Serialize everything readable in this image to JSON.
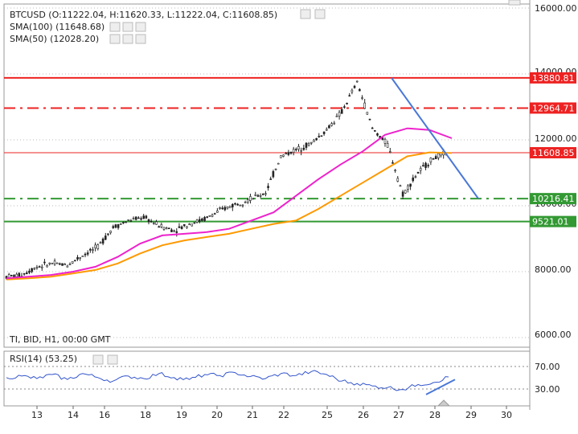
{
  "header": {
    "ohlc": "BTCUSD (O:11222.04, H:11620.33, L:11222.04, C:11608.85)",
    "sma100": "SMA(100) (11648.68)",
    "sma50": "SMA(50) (12028.20)",
    "footer_info": "TI, BID, H1, 00:00 GMT",
    "rsi_label": "RSI(14) (53.25)"
  },
  "colors": {
    "candle": "#222222",
    "sma100": "#ff9900",
    "sma50": "#ee22cc",
    "resistance": "#ee2222",
    "support": "#339933",
    "trendline": "#4a78d8",
    "rsi": "#3355cc"
  },
  "chart_data": [
    {
      "type": "line",
      "title": "BTCUSD",
      "timeframe": "H1",
      "yaxis_ticks": [
        "6000.00",
        "8000.00",
        "10000.00",
        "12000.00",
        "16000.00"
      ],
      "x_ticks": [
        "13",
        "14",
        "16",
        "18",
        "19",
        "20",
        "21",
        "22",
        "25",
        "26",
        "27",
        "28",
        "29",
        "30"
      ],
      "series": [
        {
          "name": "SMA(100)",
          "y": [
            7760,
            7800,
            7850,
            7950,
            8050,
            8250,
            8550,
            8800,
            8950,
            9050,
            9150,
            9300,
            9450,
            9550,
            9900,
            10300,
            10700,
            11100,
            11500,
            11620,
            11600
          ]
        },
        {
          "name": "SMA(50)",
          "y": [
            7800,
            7850,
            7900,
            8000,
            8150,
            8450,
            8850,
            9100,
            9150,
            9200,
            9300,
            9550,
            9800,
            10300,
            10800,
            11250,
            11650,
            12150,
            12350,
            12300,
            12050
          ]
        }
      ],
      "price_series": [
        7850,
        7900,
        8150,
        8250,
        8200,
        8500,
        8750,
        9350,
        9550,
        9650,
        9400,
        9250,
        9450,
        9600,
        9850,
        10050,
        10200,
        10400,
        11500,
        11700,
        11900,
        12300,
        12850,
        13750,
        12350,
        11850,
        10350,
        11000,
        11450,
        11608.85
      ],
      "levels": [
        {
          "value": 13880.81,
          "label": "13880.81",
          "style": "solid",
          "color": "#ee2222"
        },
        {
          "value": 12964.71,
          "label": "12964.71",
          "style": "dashdot",
          "color": "#ee2222"
        },
        {
          "value": 11608.85,
          "label": "11608.85",
          "style": "thin",
          "color": "#ee2222"
        },
        {
          "value": 10216.41,
          "label": "10216.41",
          "style": "dashdot",
          "color": "#339933"
        },
        {
          "value": 9521.01,
          "label": "9521.01",
          "style": "solid",
          "color": "#339933"
        }
      ],
      "trendline": {
        "from": {
          "x": "27",
          "y": 13880.81
        },
        "to": {
          "x": "29",
          "y": 10216.41
        }
      }
    },
    {
      "type": "line",
      "title": "RSI(14)",
      "ylim": [
        0,
        100
      ],
      "yaxis_ticks": [
        "70.00",
        "30.00"
      ],
      "series": [
        {
          "name": "RSI(14)",
          "y": [
            52,
            55,
            50,
            58,
            48,
            60,
            52,
            45,
            55,
            50,
            60,
            52,
            48,
            58,
            56,
            62,
            54,
            50,
            60,
            56,
            64,
            58,
            45,
            40,
            35,
            32,
            28,
            38,
            42,
            53.25
          ]
        }
      ]
    }
  ]
}
